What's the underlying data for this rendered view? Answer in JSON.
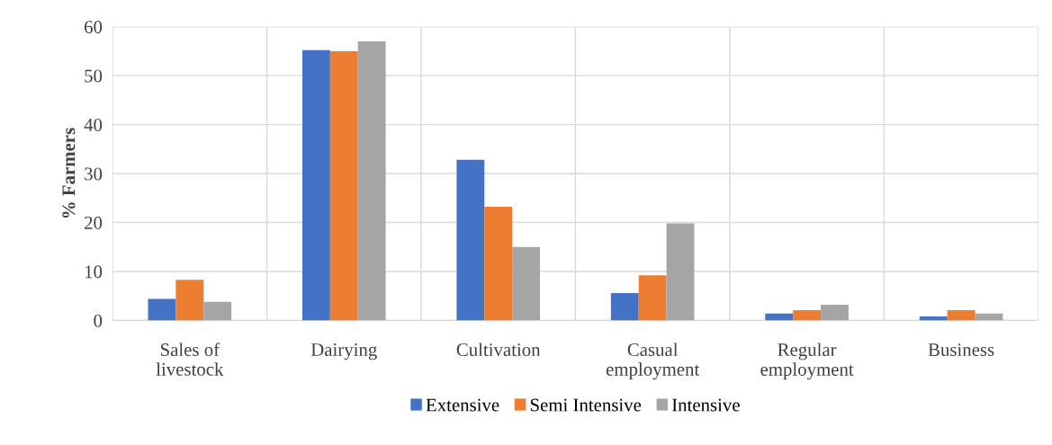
{
  "chart_data": {
    "type": "bar",
    "ylabel": "% Farmers",
    "categories": [
      "Sales of\nlivestock",
      "Dairying",
      "Cultivation",
      "Casual\nemployment",
      "Regular\nemployment",
      "Business"
    ],
    "series": [
      {
        "name": "Extensive",
        "color": "#4472c4",
        "values": [
          4.4,
          55.2,
          32.8,
          5.6,
          1.4,
          0.8
        ]
      },
      {
        "name": "Semi Intensive",
        "color": "#ed7d31",
        "values": [
          8.3,
          55,
          23.2,
          9.2,
          2.1,
          2.1
        ]
      },
      {
        "name": "Intensive",
        "color": "#a5a5a5",
        "values": [
          3.8,
          57,
          15,
          19.8,
          3.2,
          1.4
        ]
      }
    ],
    "ylim": [
      0,
      60
    ],
    "yticks": [
      0,
      10,
      20,
      30,
      40,
      50,
      60
    ],
    "grid": true,
    "legend": "bottom"
  }
}
